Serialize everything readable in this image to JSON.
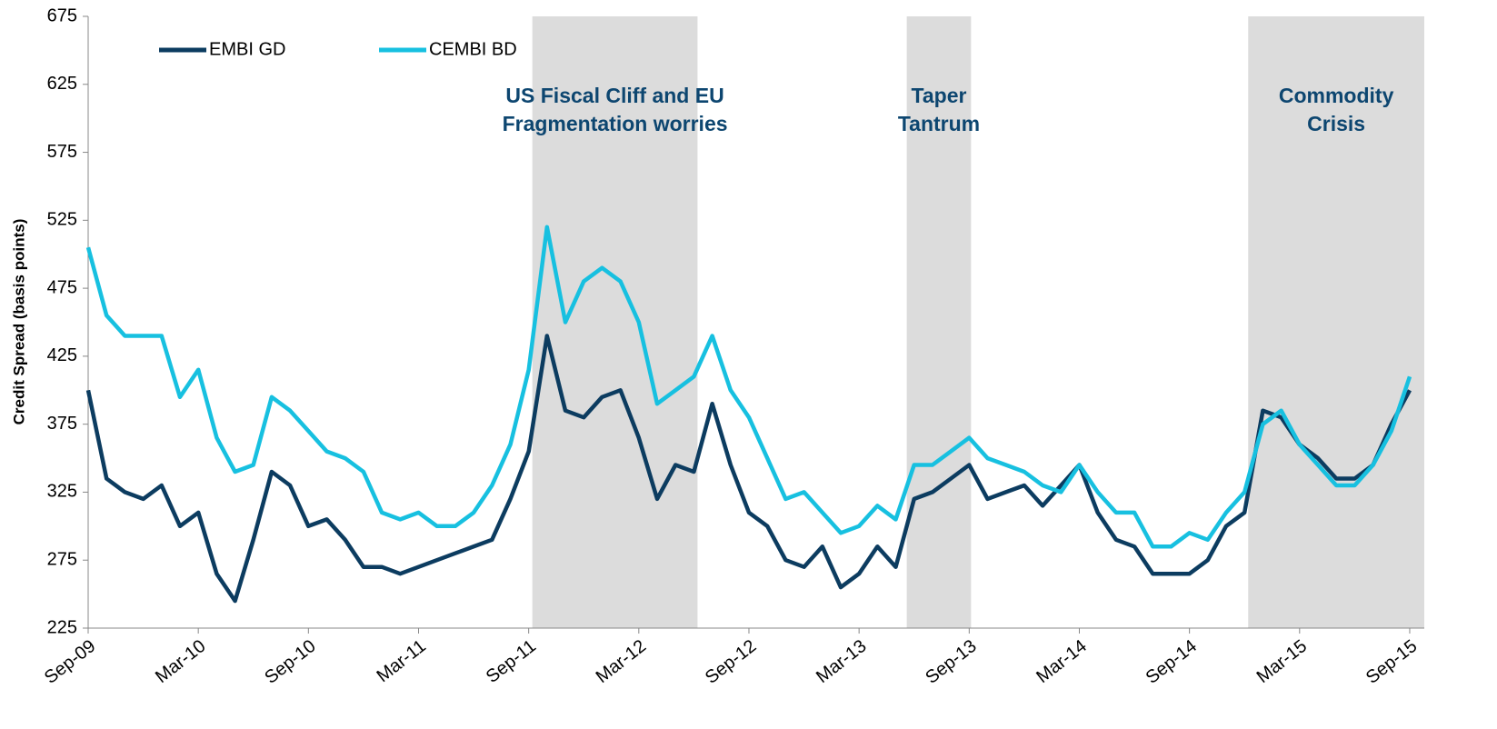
{
  "chart_data": {
    "type": "line",
    "y_label": "Credit Spread (basis points)",
    "categories": [
      "Sep-09",
      null,
      null,
      null,
      null,
      null,
      "Mar-10",
      null,
      null,
      null,
      null,
      null,
      "Sep-10",
      null,
      null,
      null,
      null,
      null,
      "Mar-11",
      null,
      null,
      null,
      null,
      null,
      "Sep-11",
      null,
      null,
      null,
      null,
      null,
      "Mar-12",
      null,
      null,
      null,
      null,
      null,
      "Sep-12",
      null,
      null,
      null,
      null,
      null,
      "Mar-13",
      null,
      null,
      null,
      null,
      null,
      "Sep-13",
      null,
      null,
      null,
      null,
      null,
      "Mar-14",
      null,
      null,
      null,
      null,
      null,
      "Sep-14",
      null,
      null,
      null,
      null,
      null,
      "Mar-15",
      null,
      null,
      null,
      null,
      null,
      "Sep-15"
    ],
    "series": [
      {
        "name": "EMBI GD",
        "color": "#0c3c60",
        "values": [
          400,
          335,
          325,
          320,
          330,
          300,
          310,
          265,
          245,
          290,
          340,
          330,
          300,
          305,
          290,
          270,
          270,
          265,
          270,
          275,
          280,
          285,
          290,
          320,
          355,
          440,
          385,
          380,
          395,
          400,
          365,
          320,
          345,
          340,
          390,
          345,
          310,
          300,
          275,
          270,
          285,
          255,
          265,
          285,
          270,
          320,
          325,
          335,
          345,
          320,
          325,
          330,
          315,
          330,
          345,
          310,
          290,
          285,
          265,
          265,
          265,
          275,
          300,
          310,
          385,
          380,
          360,
          350,
          335,
          335,
          345,
          375,
          400
        ]
      },
      {
        "name": "CEMBI BD",
        "color": "#17c0e0",
        "values": [
          505,
          455,
          440,
          440,
          440,
          395,
          415,
          365,
          340,
          345,
          395,
          385,
          370,
          355,
          350,
          340,
          310,
          305,
          310,
          300,
          300,
          310,
          330,
          360,
          415,
          520,
          450,
          480,
          490,
          480,
          450,
          390,
          400,
          410,
          440,
          400,
          380,
          350,
          320,
          325,
          310,
          295,
          300,
          315,
          305,
          345,
          345,
          355,
          365,
          350,
          345,
          340,
          330,
          325,
          345,
          325,
          310,
          310,
          285,
          285,
          295,
          290,
          310,
          325,
          375,
          385,
          360,
          345,
          330,
          330,
          345,
          370,
          410
        ]
      }
    ],
    "ylim": [
      225,
      675
    ],
    "yticks": [
      225,
      275,
      325,
      375,
      425,
      475,
      525,
      575,
      625,
      675
    ],
    "regions": [
      {
        "label": [
          "US Fiscal Cliff and EU",
          "Fragmentation worries"
        ],
        "x": [
          24.2,
          33.2
        ]
      },
      {
        "label": [
          "Taper",
          "Tantrum"
        ],
        "x": [
          44.6,
          48.1
        ]
      },
      {
        "label": [
          "Commodity",
          "Crisis"
        ],
        "x": [
          63.2,
          72.8
        ]
      }
    ],
    "region_color": "#dcdcdc",
    "legend": "top-left"
  }
}
